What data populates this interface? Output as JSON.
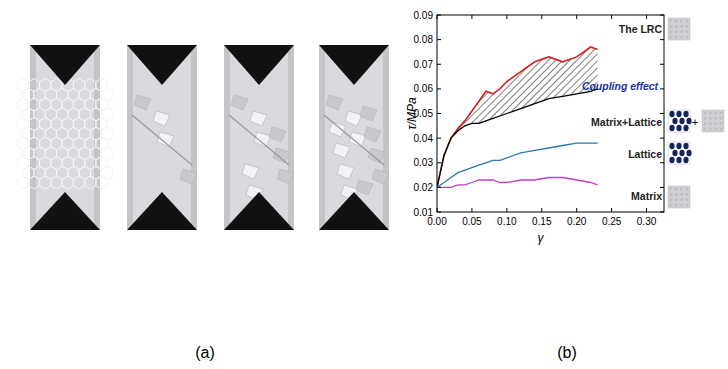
{
  "panel_labels": [
    "(a)",
    "(b)"
  ],
  "chart_data": {
    "type": "line",
    "x_label": "γ",
    "y_label": "τ/MPa",
    "annotations": [
      "Coupling effect"
    ],
    "x": [
      0,
      0.01,
      0.02,
      0.03,
      0.04,
      0.05,
      0.06,
      0.07,
      0.08,
      0.09,
      0.1,
      0.12,
      0.14,
      0.16,
      0.18,
      0.2,
      0.22,
      0.23
    ],
    "xlim": [
      0,
      0.325
    ],
    "xticks": [
      {
        "value": 0,
        "label": "0.00"
      },
      {
        "value": 0.05,
        "label": "0.05"
      },
      {
        "value": 0.1,
        "label": "0.10"
      },
      {
        "value": 0.15,
        "label": "0.15"
      },
      {
        "value": 0.2,
        "label": "0.20"
      },
      {
        "value": 0.25,
        "label": "0.25"
      },
      {
        "value": 0.3,
        "label": "0.30"
      }
    ],
    "ylim": [
      0.01,
      0.09
    ],
    "yticks": [
      0.01,
      0.02,
      0.03,
      0.04,
      0.05,
      0.06,
      0.07,
      0.08,
      0.09
    ],
    "series": [
      {
        "name": "The LRC",
        "color": "#d42020",
        "values": [
          0.02,
          0.033,
          0.04,
          0.044,
          0.047,
          0.051,
          0.055,
          0.059,
          0.058,
          0.06,
          0.063,
          0.067,
          0.071,
          0.073,
          0.071,
          0.073,
          0.077,
          0.076
        ]
      },
      {
        "name": "Matrix+Lattice",
        "color": "#000000",
        "values": [
          0.02,
          0.033,
          0.04,
          0.043,
          0.045,
          0.046,
          0.046,
          0.047,
          0.048,
          0.049,
          0.05,
          0.052,
          0.054,
          0.056,
          0.057,
          0.058,
          0.059,
          0.06
        ]
      },
      {
        "name": "Lattice",
        "color": "#2a78b8",
        "values": [
          0.02,
          0.022,
          0.024,
          0.026,
          0.027,
          0.028,
          0.029,
          0.03,
          0.031,
          0.031,
          0.032,
          0.034,
          0.035,
          0.036,
          0.037,
          0.038,
          0.038,
          0.038
        ]
      },
      {
        "name": "Matrix",
        "color": "#c040c0",
        "values": [
          0.02,
          0.02,
          0.02,
          0.021,
          0.021,
          0.022,
          0.023,
          0.023,
          0.023,
          0.022,
          0.022,
          0.023,
          0.023,
          0.024,
          0.024,
          0.023,
          0.022,
          0.021
        ]
      }
    ]
  }
}
